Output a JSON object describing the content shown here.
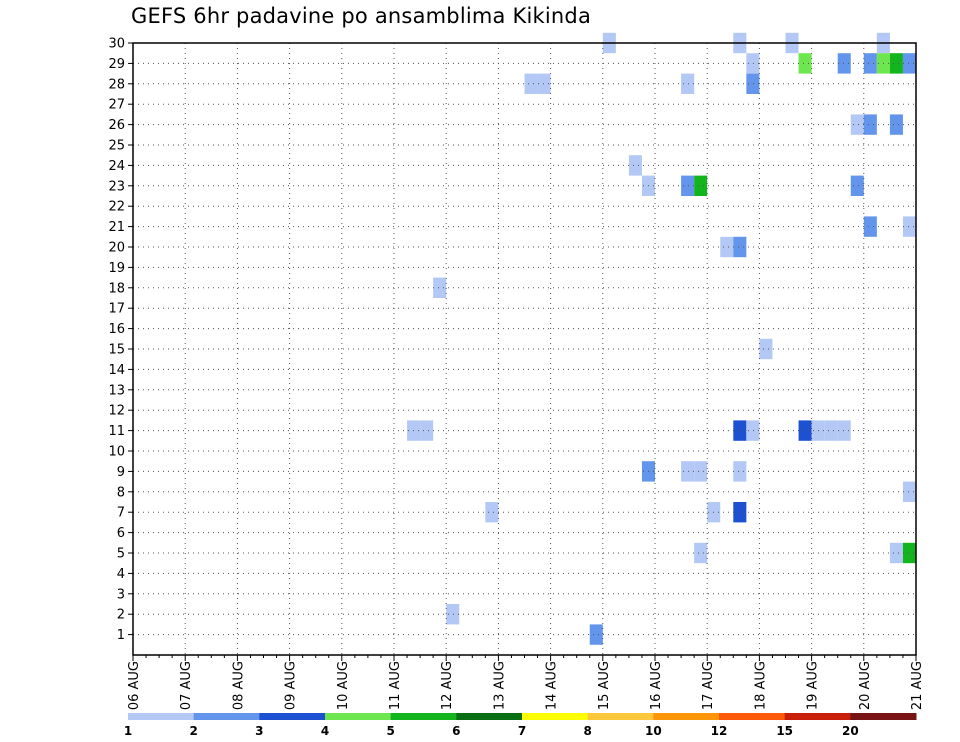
{
  "chart_data": {
    "type": "heatmap",
    "title": "GEFS 6hr padavine po ansamblima Kikinda",
    "x_labels": [
      "06 AUG",
      "07 AUG",
      "08 AUG",
      "09 AUG",
      "10 AUG",
      "11 AUG",
      "12 AUG",
      "13 AUG",
      "14 AUG",
      "15 AUG",
      "16 AUG",
      "17 AUG",
      "18 AUG",
      "19 AUG",
      "20 AUG",
      "21 AUG"
    ],
    "y_labels": [
      "30",
      "29",
      "28",
      "27",
      "26",
      "25",
      "24",
      "23",
      "22",
      "21",
      "20",
      "19",
      "18",
      "17",
      "16",
      "15",
      "14",
      "13",
      "12",
      "11",
      "10",
      "9",
      "8",
      "7",
      "6",
      "5",
      "4",
      "3",
      "2",
      "1"
    ],
    "x_range_days": [
      0,
      15
    ],
    "y_range_members": [
      0,
      30
    ],
    "x_step_days": 0.25,
    "grid": true,
    "colorbar": {
      "labels": [
        "1",
        "2",
        "3",
        "4",
        "5",
        "6",
        "7",
        "8",
        "10",
        "12",
        "15",
        "20"
      ],
      "colors": [
        "#b4c8f5",
        "#6495ed",
        "#1e50d2",
        "#6ee650",
        "#14b41e",
        "#0a6e14",
        "#ffff00",
        "#ffc83c",
        "#ff960a",
        "#ff5a0a",
        "#c81e0a",
        "#781414"
      ]
    },
    "cells": [
      {
        "x": "15 AUG",
        "member": 30,
        "bin": 1
      },
      {
        "x": "17 AUG 12Z",
        "member": 30,
        "bin": 1
      },
      {
        "x": "18 AUG 12Z",
        "member": 30,
        "bin": 1
      },
      {
        "x": "20 AUG 06Z",
        "member": 30,
        "bin": 1
      },
      {
        "x": "17 AUG 18Z",
        "member": 29,
        "bin": 1
      },
      {
        "x": "18 AUG 18Z",
        "member": 29,
        "bin": 4
      },
      {
        "x": "19 AUG 12Z",
        "member": 29,
        "bin": 2
      },
      {
        "x": "20 AUG",
        "member": 29,
        "bin": 2
      },
      {
        "x": "20 AUG 06Z",
        "member": 29,
        "bin": 4
      },
      {
        "x": "20 AUG 12Z",
        "member": 29,
        "bin": 5
      },
      {
        "x": "20 AUG 18Z",
        "member": 29,
        "bin": 2
      },
      {
        "x": "13 AUG 12Z",
        "member": 28,
        "bin": 1
      },
      {
        "x": "13 AUG 18Z",
        "member": 28,
        "bin": 1
      },
      {
        "x": "16 AUG 12Z",
        "member": 28,
        "bin": 1
      },
      {
        "x": "17 AUG 18Z",
        "member": 28,
        "bin": 2
      },
      {
        "x": "19 AUG 18Z",
        "member": 26,
        "bin": 1
      },
      {
        "x": "20 AUG",
        "member": 26,
        "bin": 2
      },
      {
        "x": "20 AUG 12Z",
        "member": 26,
        "bin": 2
      },
      {
        "x": "15 AUG 12Z",
        "member": 24,
        "bin": 1
      },
      {
        "x": "15 AUG 18Z",
        "member": 23,
        "bin": 1
      },
      {
        "x": "16 AUG 12Z",
        "member": 23,
        "bin": 2
      },
      {
        "x": "16 AUG 18Z",
        "member": 23,
        "bin": 5
      },
      {
        "x": "19 AUG 18Z",
        "member": 23,
        "bin": 2
      },
      {
        "x": "20 AUG",
        "member": 21,
        "bin": 2
      },
      {
        "x": "20 AUG 18Z",
        "member": 21,
        "bin": 1
      },
      {
        "x": "17 AUG 06Z",
        "member": 20,
        "bin": 1
      },
      {
        "x": "17 AUG 12Z",
        "member": 20,
        "bin": 2
      },
      {
        "x": "11 AUG 18Z",
        "member": 18,
        "bin": 1
      },
      {
        "x": "18 AUG",
        "member": 15,
        "bin": 1
      },
      {
        "x": "11 AUG 06Z",
        "member": 11,
        "bin": 1
      },
      {
        "x": "11 AUG 12Z",
        "member": 11,
        "bin": 1
      },
      {
        "x": "17 AUG 12Z",
        "member": 11,
        "bin": 3
      },
      {
        "x": "17 AUG 18Z",
        "member": 11,
        "bin": 1
      },
      {
        "x": "18 AUG 18Z",
        "member": 11,
        "bin": 3
      },
      {
        "x": "19 AUG",
        "member": 11,
        "bin": 1
      },
      {
        "x": "19 AUG 06Z",
        "member": 11,
        "bin": 1
      },
      {
        "x": "19 AUG 12Z",
        "member": 11,
        "bin": 1
      },
      {
        "x": "15 AUG 18Z",
        "member": 9,
        "bin": 2
      },
      {
        "x": "16 AUG 12Z",
        "member": 9,
        "bin": 1
      },
      {
        "x": "16 AUG 18Z",
        "member": 9,
        "bin": 1
      },
      {
        "x": "17 AUG 12Z",
        "member": 9,
        "bin": 1
      },
      {
        "x": "20 AUG 18Z",
        "member": 8,
        "bin": 1
      },
      {
        "x": "12 AUG 18Z",
        "member": 7,
        "bin": 1
      },
      {
        "x": "17 AUG",
        "member": 7,
        "bin": 1
      },
      {
        "x": "17 AUG 12Z",
        "member": 7,
        "bin": 3
      },
      {
        "x": "16 AUG 18Z",
        "member": 5,
        "bin": 1
      },
      {
        "x": "20 AUG 12Z",
        "member": 5,
        "bin": 1
      },
      {
        "x": "20 AUG 18Z",
        "member": 5,
        "bin": 5
      },
      {
        "x": "12 AUG",
        "member": 2,
        "bin": 1
      },
      {
        "x": "14 AUG 18Z",
        "member": 1,
        "bin": 2
      }
    ]
  }
}
